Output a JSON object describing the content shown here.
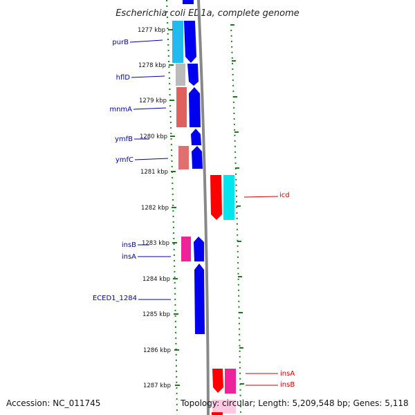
{
  "title": "Escherichia coli ED1a, complete genome",
  "footer": {
    "accession": "Accession: NC_011745",
    "summary": "Topology: circular; Length: 5,209,548 bp; Genes: 5,118"
  },
  "ticks": [
    "1277 kbp",
    "1278 kbp",
    "1279 kbp",
    "1280 kbp",
    "1281 kbp",
    "1282 kbp",
    "1283 kbp",
    "1284 kbp",
    "1285 kbp",
    "1286 kbp",
    "1287 kbp"
  ],
  "colors": {
    "forward": "#0000ee",
    "backbone": "#888888",
    "reverse": "#ff0000",
    "cyan": "#00e5ee",
    "tick": "#1a7a1a",
    "label_left": "#0000aa",
    "label_right": "#cc0000"
  },
  "genes_left": [
    {
      "name": "purB"
    },
    {
      "name": "hflD"
    },
    {
      "name": "mnmA"
    },
    {
      "name": "ymfB"
    },
    {
      "name": "ymfC"
    },
    {
      "name": "insB"
    },
    {
      "name": "insA"
    },
    {
      "name": "ECED1_1284"
    }
  ],
  "genes_right": [
    {
      "name": "icd"
    },
    {
      "name": "insA"
    },
    {
      "name": "insB"
    }
  ]
}
